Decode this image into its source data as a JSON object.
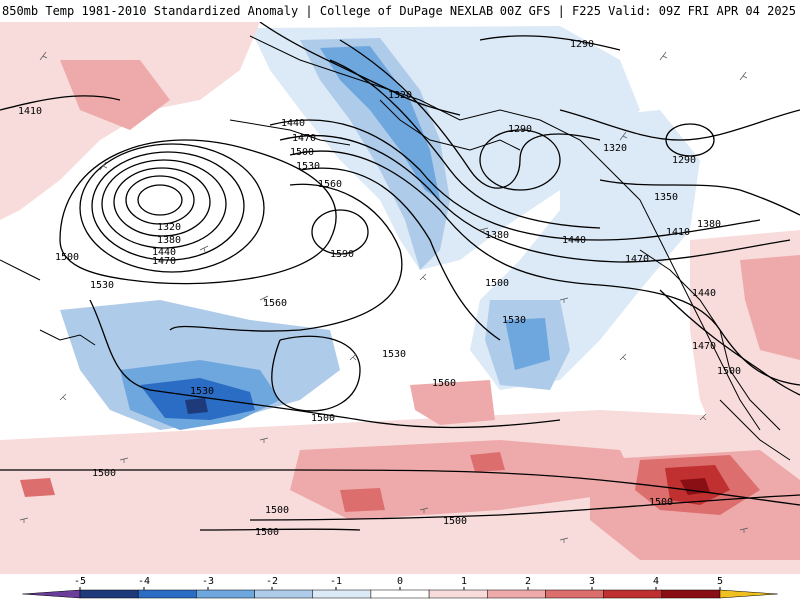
{
  "header": {
    "title_left": "850mb Temp 1981-2010 Standardized Anomaly | College of DuPage NEXLAB",
    "title_right": "00Z GFS | F225 Valid: 09Z FRI APR 04 2025"
  },
  "contour_labels": [
    {
      "name": "height-label-1290-ne",
      "text": "1290"
    },
    {
      "name": "height-label-1320-north",
      "text": "1320"
    },
    {
      "name": "height-label-1290-alaska",
      "text": "1290"
    },
    {
      "name": "height-label-1410-west",
      "text": "1410"
    },
    {
      "name": "height-label-1440-low",
      "text": "1440"
    },
    {
      "name": "height-label-1470-low",
      "text": "1470"
    },
    {
      "name": "height-label-1500-low",
      "text": "1500"
    },
    {
      "name": "height-label-1530-low",
      "text": "1530"
    },
    {
      "name": "height-label-1560-ridge",
      "text": "1560"
    },
    {
      "name": "height-label-1320-low-center",
      "text": "1320"
    },
    {
      "name": "height-label-1380-low",
      "text": "1380"
    },
    {
      "name": "height-label-1440-low-s",
      "text": "1440"
    },
    {
      "name": "height-label-1470-low-s",
      "text": "1470"
    },
    {
      "name": "height-label-1590-high",
      "text": "1590"
    },
    {
      "name": "height-label-1500-west",
      "text": "1500"
    },
    {
      "name": "height-label-1320-east",
      "text": "1320"
    },
    {
      "name": "height-label-1290-east",
      "text": "1290"
    },
    {
      "name": "height-label-1350-east",
      "text": "1350"
    },
    {
      "name": "height-label-1380-east",
      "text": "1380"
    },
    {
      "name": "height-label-1410-east",
      "text": "1410"
    },
    {
      "name": "height-label-1380-trough",
      "text": "1380"
    },
    {
      "name": "height-label-1440-trough",
      "text": "1440"
    },
    {
      "name": "height-label-1470-coast",
      "text": "1470"
    },
    {
      "name": "height-label-1500-trough",
      "text": "1500"
    },
    {
      "name": "height-label-1440-coast",
      "text": "1440"
    },
    {
      "name": "height-label-1470-coast-s",
      "text": "1470"
    },
    {
      "name": "height-label-1500-coast",
      "text": "1500"
    },
    {
      "name": "height-label-1530-west",
      "text": "1530"
    },
    {
      "name": "height-label-1560-mid",
      "text": "1560"
    },
    {
      "name": "height-label-1530-mid",
      "text": "1530"
    },
    {
      "name": "height-label-1530-east",
      "text": "1530"
    },
    {
      "name": "height-label-1530-sw",
      "text": "1530"
    },
    {
      "name": "height-label-1500-sw",
      "text": "1500"
    },
    {
      "name": "height-label-1560-south",
      "text": "1560"
    },
    {
      "name": "height-label-1500-far-west",
      "text": "1500"
    },
    {
      "name": "height-label-1500-south-a",
      "text": "1500"
    },
    {
      "name": "height-label-1500-south-b",
      "text": "1500"
    },
    {
      "name": "height-label-1500-south-c",
      "text": "1500"
    },
    {
      "name": "height-label-1500-se",
      "text": "1500"
    }
  ],
  "colorbar": {
    "ticks": [
      "-5",
      "-4",
      "-3",
      "-2",
      "-1",
      "0",
      "1",
      "2",
      "3",
      "4",
      "5"
    ],
    "colors": [
      "#6a3d9a",
      "#1f3a7a",
      "#2b6cc4",
      "#6ea6de",
      "#aecbe9",
      "#dce9f6",
      "#ffffff",
      "#f8dcdc",
      "#eeaaaa",
      "#dd6e6e",
      "#c03030",
      "#8a0f14",
      "#f0c020"
    ]
  }
}
